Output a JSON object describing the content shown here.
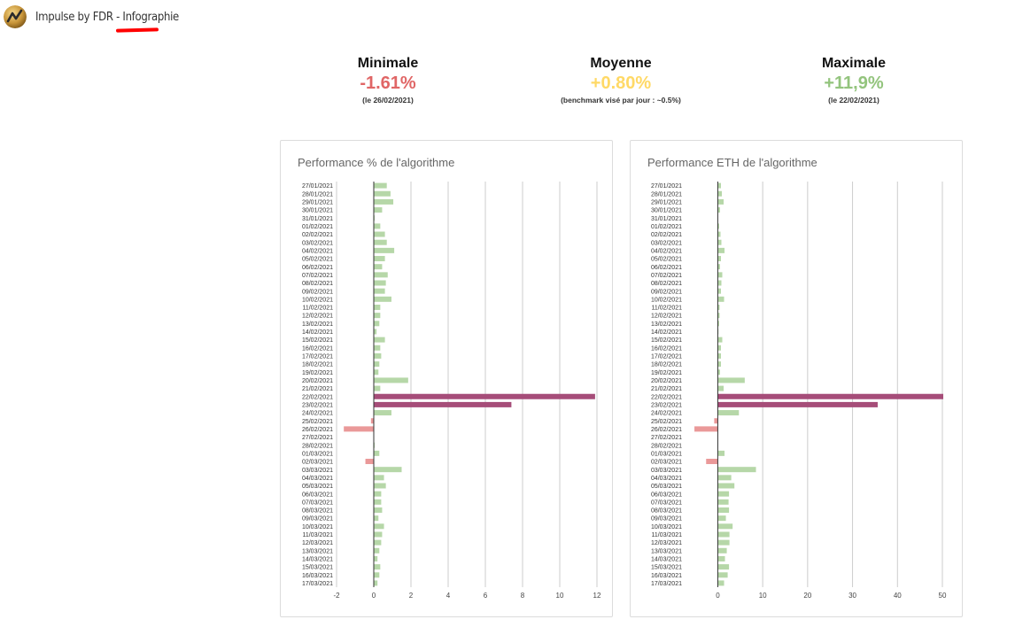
{
  "header": {
    "app_name": "Impulse by FDR",
    "separator": " - ",
    "section": "Infographie"
  },
  "stats": {
    "min": {
      "label": "Minimale",
      "value": "-1.61%",
      "note": "(le 26/02/2021)"
    },
    "avg": {
      "label": "Moyenne",
      "value": "+0.80%",
      "note": "(benchmark visé par jour : ~0.5%)"
    },
    "max": {
      "label": "Maximale",
      "value": "+11,9%",
      "note": "(le 22/02/2021)"
    }
  },
  "colors": {
    "negative": "#e06666",
    "average": "#ffd966",
    "positive": "#93c47d",
    "bar_positive": "#b6d7a8",
    "bar_negative": "#ea9999",
    "bar_highlight": "#a64d79",
    "grid": "#cccccc",
    "axis": "#333333"
  },
  "chart_data": [
    {
      "type": "bar",
      "orientation": "horizontal",
      "title": "Performance % de l'algorithme",
      "categories": [
        "27/01/2021",
        "28/01/2021",
        "29/01/2021",
        "30/01/2021",
        "31/01/2021",
        "01/02/2021",
        "02/02/2021",
        "03/02/2021",
        "04/02/2021",
        "05/02/2021",
        "06/02/2021",
        "07/02/2021",
        "08/02/2021",
        "09/02/2021",
        "10/02/2021",
        "11/02/2021",
        "12/02/2021",
        "13/02/2021",
        "14/02/2021",
        "15/02/2021",
        "16/02/2021",
        "17/02/2021",
        "18/02/2021",
        "19/02/2021",
        "20/02/2021",
        "21/02/2021",
        "22/02/2021",
        "23/02/2021",
        "24/02/2021",
        "25/02/2021",
        "26/02/2021",
        "27/02/2021",
        "28/02/2021",
        "01/03/2021",
        "02/03/2021",
        "03/03/2021",
        "04/03/2021",
        "05/03/2021",
        "06/03/2021",
        "07/03/2021",
        "08/03/2021",
        "09/03/2021",
        "10/03/2021",
        "11/03/2021",
        "12/03/2021",
        "13/03/2021",
        "14/03/2021",
        "15/03/2021",
        "16/03/2021",
        "17/03/2021"
      ],
      "values": [
        0.7,
        0.9,
        1.05,
        0.45,
        0.05,
        0.35,
        0.6,
        0.7,
        1.1,
        0.6,
        0.45,
        0.75,
        0.65,
        0.6,
        0.95,
        0.35,
        0.35,
        0.3,
        0.15,
        0.6,
        0.35,
        0.4,
        0.3,
        0.25,
        1.85,
        0.35,
        11.9,
        7.4,
        0.95,
        -0.15,
        -1.61,
        0.0,
        0.05,
        0.3,
        -0.45,
        1.5,
        0.55,
        0.65,
        0.4,
        0.4,
        0.45,
        0.25,
        0.55,
        0.45,
        0.4,
        0.3,
        0.2,
        0.35,
        0.3,
        0.2
      ],
      "highlight_categories": [
        "22/02/2021",
        "23/02/2021"
      ],
      "xlim": [
        -2,
        12
      ],
      "xticks": [
        -2,
        0,
        2,
        4,
        6,
        8,
        10,
        12
      ],
      "grid": true,
      "xlabel": "",
      "ylabel": ""
    },
    {
      "type": "bar",
      "orientation": "horizontal",
      "title": "Performance ETH de l'algorithme",
      "categories": [
        "27/01/2021",
        "28/01/2021",
        "29/01/2021",
        "30/01/2021",
        "31/01/2021",
        "01/02/2021",
        "02/02/2021",
        "03/02/2021",
        "04/02/2021",
        "05/02/2021",
        "06/02/2021",
        "07/02/2021",
        "08/02/2021",
        "09/02/2021",
        "10/02/2021",
        "11/02/2021",
        "12/02/2021",
        "13/02/2021",
        "14/02/2021",
        "15/02/2021",
        "16/02/2021",
        "17/02/2021",
        "18/02/2021",
        "19/02/2021",
        "20/02/2021",
        "21/02/2021",
        "22/02/2021",
        "23/02/2021",
        "24/02/2021",
        "25/02/2021",
        "26/02/2021",
        "27/02/2021",
        "28/02/2021",
        "01/03/2021",
        "02/03/2021",
        "03/03/2021",
        "04/03/2021",
        "05/03/2021",
        "06/03/2021",
        "07/03/2021",
        "08/03/2021",
        "09/03/2021",
        "10/03/2021",
        "11/03/2021",
        "12/03/2021",
        "13/03/2021",
        "14/03/2021",
        "15/03/2021",
        "16/03/2021",
        "17/03/2021"
      ],
      "values": [
        0.7,
        0.9,
        1.3,
        0.5,
        0.05,
        0.3,
        0.6,
        0.8,
        1.5,
        0.7,
        0.5,
        1.0,
        0.8,
        0.7,
        1.4,
        0.4,
        0.4,
        0.3,
        0.15,
        1.0,
        0.7,
        0.7,
        0.7,
        0.5,
        6.0,
        1.3,
        50.2,
        35.6,
        4.7,
        -0.8,
        -5.2,
        0.0,
        0.05,
        1.5,
        -2.6,
        8.5,
        3.0,
        3.7,
        2.5,
        2.4,
        2.5,
        1.8,
        3.3,
        2.6,
        2.6,
        2.0,
        1.6,
        2.5,
        2.2,
        1.4
      ],
      "highlight_categories": [
        "22/02/2021",
        "23/02/2021"
      ],
      "xlim": [
        -6,
        50
      ],
      "xticks": [
        0,
        10,
        20,
        30,
        40,
        50
      ],
      "grid": true,
      "xlabel": "",
      "ylabel": ""
    }
  ]
}
